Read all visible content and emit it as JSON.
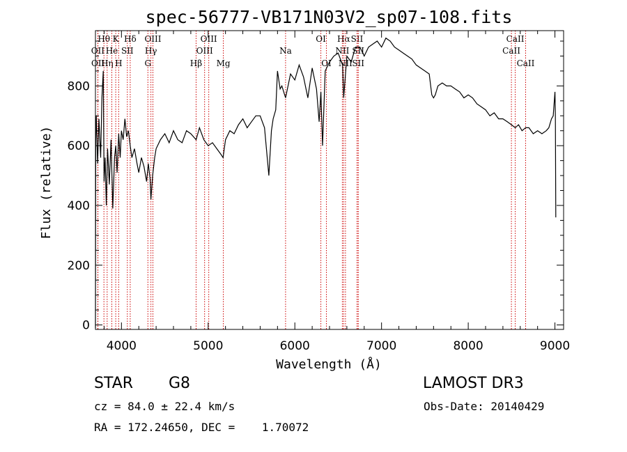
{
  "chart_data": {
    "type": "line",
    "title": "spec-56777-VB171N03V2_sp07-108.fits",
    "xlabel": "Wavelength (Å)",
    "ylabel": "Flux (relative)",
    "xlim": [
      3700,
      9100
    ],
    "ylim": [
      -15,
      985
    ],
    "xticks": [
      4000,
      5000,
      6000,
      7000,
      8000,
      9000
    ],
    "yticks": [
      0,
      200,
      400,
      600,
      800
    ],
    "series": [
      {
        "name": "flux",
        "x": [
          3700,
          3703,
          3710,
          3725,
          3740,
          3760,
          3775,
          3790,
          3800,
          3812,
          3825,
          3840,
          3860,
          3880,
          3900,
          3920,
          3935,
          3950,
          3968,
          3985,
          4000,
          4020,
          4040,
          4060,
          4080,
          4101,
          4120,
          4150,
          4180,
          4200,
          4230,
          4260,
          4290,
          4310,
          4330,
          4340,
          4360,
          4383,
          4400,
          4450,
          4500,
          4550,
          4600,
          4650,
          4700,
          4750,
          4800,
          4861,
          4900,
          4950,
          5000,
          5050,
          5100,
          5150,
          5172,
          5200,
          5250,
          5300,
          5350,
          5400,
          5450,
          5500,
          5550,
          5600,
          5650,
          5700,
          5730,
          5750,
          5780,
          5800,
          5830,
          5850,
          5893,
          5950,
          6000,
          6050,
          6100,
          6150,
          6200,
          6250,
          6280,
          6300,
          6320,
          6350,
          6400,
          6450,
          6500,
          6550,
          6563,
          6600,
          6650,
          6700,
          6750,
          6800,
          6850,
          6900,
          6950,
          7000,
          7050,
          7100,
          7150,
          7200,
          7250,
          7300,
          7350,
          7400,
          7450,
          7500,
          7550,
          7580,
          7600,
          7620,
          7650,
          7700,
          7750,
          7800,
          7850,
          7900,
          7950,
          8000,
          8050,
          8100,
          8150,
          8200,
          8250,
          8300,
          8350,
          8400,
          8450,
          8498,
          8542,
          8580,
          8620,
          8662,
          8700,
          8750,
          8800,
          8850,
          8900,
          8930,
          8960,
          8980,
          9000,
          9005,
          9010
        ],
        "y": [
          -10,
          620,
          700,
          540,
          690,
          560,
          760,
          850,
          480,
          560,
          400,
          590,
          470,
          620,
          390,
          560,
          600,
          510,
          640,
          560,
          650,
          620,
          690,
          630,
          650,
          600,
          560,
          590,
          540,
          510,
          560,
          530,
          480,
          540,
          490,
          420,
          500,
          560,
          590,
          620,
          640,
          610,
          650,
          620,
          610,
          650,
          640,
          620,
          660,
          620,
          600,
          610,
          590,
          570,
          560,
          620,
          650,
          640,
          670,
          690,
          660,
          680,
          700,
          700,
          660,
          500,
          650,
          690,
          720,
          850,
          790,
          800,
          760,
          840,
          820,
          870,
          830,
          760,
          860,
          790,
          680,
          780,
          600,
          850,
          880,
          900,
          910,
          870,
          760,
          900,
          880,
          930,
          930,
          900,
          930,
          940,
          950,
          930,
          960,
          950,
          930,
          920,
          910,
          900,
          890,
          870,
          860,
          850,
          840,
          770,
          760,
          770,
          800,
          810,
          800,
          800,
          790,
          780,
          760,
          770,
          760,
          740,
          730,
          720,
          700,
          710,
          690,
          690,
          680,
          670,
          660,
          670,
          650,
          660,
          660,
          640,
          650,
          640,
          650,
          660,
          690,
          700,
          780,
          700,
          360
        ]
      }
    ],
    "line_markers": [
      {
        "name": "Hθ",
        "wl": 3798,
        "row": 1
      },
      {
        "name": "OII",
        "wl": 3727,
        "row": 2
      },
      {
        "name": "OII",
        "wl": 3729,
        "row": 3
      },
      {
        "name": "Hη",
        "wl": 3835,
        "row": 3
      },
      {
        "name": "He",
        "wl": 3889,
        "row": 2
      },
      {
        "name": "K",
        "wl": 3934,
        "row": 1
      },
      {
        "name": "SII",
        "wl": 4068,
        "row": 2
      },
      {
        "name": "H",
        "wl": 3968,
        "row": 3
      },
      {
        "name": "Hδ",
        "wl": 4101,
        "row": 1
      },
      {
        "name": "OIII",
        "wl": 4363,
        "row": 1
      },
      {
        "name": "Hγ",
        "wl": 4340,
        "row": 2
      },
      {
        "name": "G",
        "wl": 4305,
        "row": 3
      },
      {
        "name": "Hβ",
        "wl": 4861,
        "row": 3
      },
      {
        "name": "OIII",
        "wl": 4959,
        "row": 2
      },
      {
        "name": "OIII",
        "wl": 5007,
        "row": 1
      },
      {
        "name": "Mg",
        "wl": 5175,
        "row": 3
      },
      {
        "name": "Na",
        "wl": 5893,
        "row": 2
      },
      {
        "name": "OI",
        "wl": 6300,
        "row": 1
      },
      {
        "name": "OI",
        "wl": 6364,
        "row": 3
      },
      {
        "name": "Hα",
        "wl": 6563,
        "row": 1
      },
      {
        "name": "NII",
        "wl": 6548,
        "row": 2
      },
      {
        "name": "NII",
        "wl": 6584,
        "row": 3
      },
      {
        "name": "SII",
        "wl": 6717,
        "row": 1
      },
      {
        "name": "SII",
        "wl": 6731,
        "row": 2
      },
      {
        "name": "SII",
        "wl": 6731,
        "row": 3
      },
      {
        "name": "CaII",
        "wl": 8542,
        "row": 1
      },
      {
        "name": "CaII",
        "wl": 8498,
        "row": 2
      },
      {
        "name": "CaII",
        "wl": 8662,
        "row": 3
      }
    ],
    "marker_color": "#cc0000",
    "line_color": "#000000"
  },
  "info": {
    "class_label": "STAR",
    "subclass": "G8",
    "survey": "LAMOST DR3",
    "cz": "cz = 84.0 ± 22.4 km/s",
    "obs_date": "Obs-Date: 20140429",
    "radec": "RA = 172.24650, DEC =    1.70072"
  }
}
